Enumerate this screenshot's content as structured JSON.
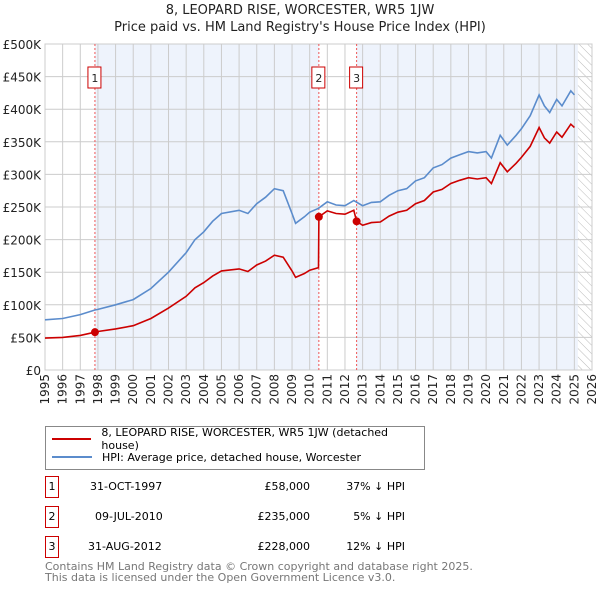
{
  "title": "8, LEOPARD RISE, WORCESTER, WR5 1JW",
  "subtitle": "Price paid vs. HM Land Registry's House Price Index (HPI)",
  "chart_data": {
    "type": "line",
    "title": "8, LEOPARD RISE, WORCESTER, WR5 1JW",
    "subtitle": "Price paid vs. HM Land Registry's House Price Index (HPI)",
    "xlim": [
      1995,
      2026
    ],
    "ylim": [
      0,
      500000
    ],
    "y_ticks": [
      {
        "v": 0,
        "label": "£0"
      },
      {
        "v": 50000,
        "label": "£50K"
      },
      {
        "v": 100000,
        "label": "£100K"
      },
      {
        "v": 150000,
        "label": "£150K"
      },
      {
        "v": 200000,
        "label": "£200K"
      },
      {
        "v": 250000,
        "label": "£250K"
      },
      {
        "v": 300000,
        "label": "£300K"
      },
      {
        "v": 350000,
        "label": "£350K"
      },
      {
        "v": 400000,
        "label": "£400K"
      },
      {
        "v": 450000,
        "label": "£450K"
      },
      {
        "v": 500000,
        "label": "£500K"
      }
    ],
    "x_ticks": [
      "1995",
      "1996",
      "1997",
      "1998",
      "1999",
      "2000",
      "2001",
      "2002",
      "2003",
      "2004",
      "2005",
      "2006",
      "2007",
      "2008",
      "2009",
      "2010",
      "2011",
      "2012",
      "2013",
      "2014",
      "2015",
      "2016",
      "2017",
      "2018",
      "2019",
      "2020",
      "2021",
      "2022",
      "2023",
      "2024",
      "2025",
      "2026"
    ],
    "grid": true,
    "forecast_from": 2025.2,
    "series": [
      {
        "name": "8, LEOPARD RISE, WORCESTER, WR5 1JW (detached house)",
        "color": "#cc0000",
        "x": [
          1995,
          1996,
          1997,
          1997.83,
          1998,
          1999,
          2000,
          2001,
          2002,
          2003,
          2003.5,
          2004,
          2004.5,
          2005,
          2006,
          2006.5,
          2007,
          2007.5,
          2008,
          2008.5,
          2009,
          2009.2,
          2009.7,
          2010,
          2010.5,
          2010.52,
          2011,
          2011.5,
          2012,
          2012.5,
          2012.66,
          2013,
          2013.5,
          2014,
          2014.5,
          2015,
          2015.5,
          2016,
          2016.5,
          2017,
          2017.5,
          2018,
          2018.5,
          2019,
          2019.5,
          2020,
          2020.3,
          2020.8,
          2021.2,
          2021.7,
          2022,
          2022.5,
          2023,
          2023.3,
          2023.6,
          2024,
          2024.3,
          2024.8,
          2025
        ],
        "y": [
          49000,
          50000,
          53000,
          58000,
          59000,
          63000,
          68000,
          79000,
          95000,
          113000,
          126000,
          134000,
          144000,
          152000,
          155000,
          151000,
          161000,
          167000,
          176000,
          173000,
          152000,
          142000,
          148000,
          153000,
          157000,
          235000,
          244000,
          240000,
          239000,
          245000,
          228000,
          222000,
          226000,
          227000,
          236000,
          242000,
          245000,
          255000,
          260000,
          273000,
          277000,
          286000,
          291000,
          295000,
          293000,
          295000,
          286000,
          318000,
          304000,
          317000,
          326000,
          343000,
          372000,
          356000,
          348000,
          365000,
          357000,
          377000,
          372000
        ]
      },
      {
        "name": "HPI: Average price, detached house, Worcester",
        "color": "#5b8ccc",
        "x": [
          1995,
          1996,
          1997,
          1997.83,
          1998,
          1999,
          2000,
          2001,
          2002,
          2003,
          2003.5,
          2004,
          2004.5,
          2005,
          2006,
          2006.5,
          2007,
          2007.5,
          2008,
          2008.5,
          2009,
          2009.2,
          2009.7,
          2010,
          2010.5,
          2011,
          2011.5,
          2012,
          2012.5,
          2013,
          2013.5,
          2014,
          2014.5,
          2015,
          2015.5,
          2016,
          2016.5,
          2017,
          2017.5,
          2018,
          2018.5,
          2019,
          2019.5,
          2020,
          2020.3,
          2020.8,
          2021.2,
          2021.7,
          2022,
          2022.5,
          2023,
          2023.3,
          2023.6,
          2024,
          2024.3,
          2024.8,
          2025
        ],
        "y": [
          77000,
          79000,
          85000,
          92000,
          93000,
          100000,
          108000,
          125000,
          150000,
          180000,
          200000,
          212000,
          228000,
          240000,
          245000,
          240000,
          255000,
          265000,
          278000,
          275000,
          240000,
          225000,
          235000,
          242000,
          248000,
          258000,
          253000,
          252000,
          260000,
          252000,
          257000,
          258000,
          268000,
          275000,
          278000,
          290000,
          295000,
          310000,
          315000,
          325000,
          330000,
          335000,
          333000,
          335000,
          325000,
          360000,
          345000,
          360000,
          370000,
          390000,
          422000,
          405000,
          395000,
          415000,
          405000,
          428000,
          422000
        ]
      }
    ],
    "sales": [
      {
        "num": "1",
        "x": 1997.83,
        "y": 58000,
        "date": "31-OCT-1997",
        "price": "£58,000",
        "hpi": "37% ↓ HPI"
      },
      {
        "num": "2",
        "x": 2010.52,
        "y": 235000,
        "date": "09-JUL-2010",
        "price": "£235,000",
        "hpi": "5% ↓ HPI"
      },
      {
        "num": "3",
        "x": 2012.66,
        "y": 228000,
        "date": "31-AUG-2012",
        "price": "£228,000",
        "hpi": "12% ↓ HPI"
      }
    ]
  },
  "footer": {
    "line1": "Contains HM Land Registry data © Crown copyright and database right 2025.",
    "line2": "This data is licensed under the Open Government Licence v3.0."
  }
}
